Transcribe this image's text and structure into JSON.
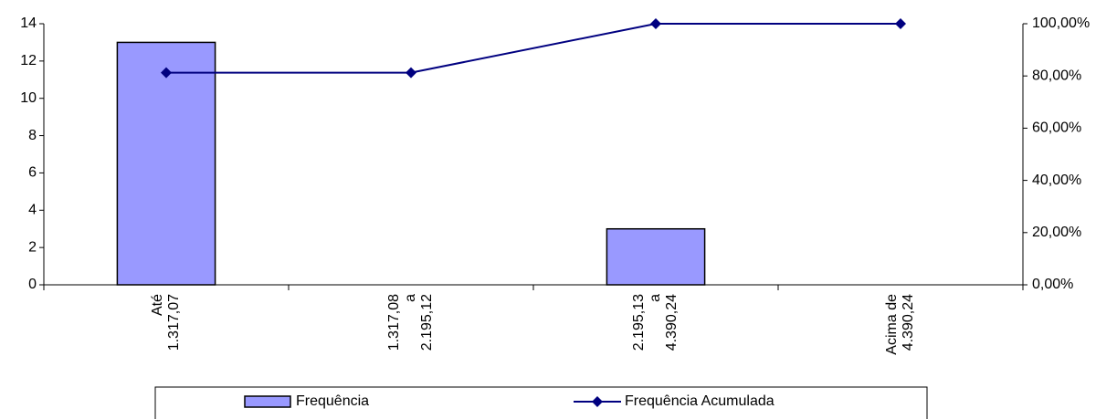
{
  "chart_data": {
    "type": "bar-line",
    "categories": [
      "Até\n1.317,07",
      "1.317,08\na\n2.195,12",
      "2.195,13\na\n4.390,24",
      "Acima de\n4.390,24"
    ],
    "series": [
      {
        "name": "Frequência",
        "type": "bar",
        "color": "#9999ff",
        "values": [
          13,
          0,
          3,
          0
        ]
      },
      {
        "name": "Frequência Acumulada",
        "type": "line",
        "axis": "y2",
        "color": "#000080",
        "values": [
          81.25,
          81.25,
          100,
          100
        ]
      }
    ],
    "ylim": [
      0,
      14
    ],
    "yticks": [
      0,
      2,
      4,
      6,
      8,
      10,
      12,
      14
    ],
    "y2lim": [
      0,
      100
    ],
    "y2ticks": [
      {
        "value": 0,
        "label": "0,00%"
      },
      {
        "value": 20,
        "label": "20,00%"
      },
      {
        "value": 40,
        "label": "40,00%"
      },
      {
        "value": 60,
        "label": "60,00%"
      },
      {
        "value": 80,
        "label": "80,00%"
      },
      {
        "value": 100,
        "label": "100,00%"
      }
    ],
    "legend": "bottom"
  }
}
